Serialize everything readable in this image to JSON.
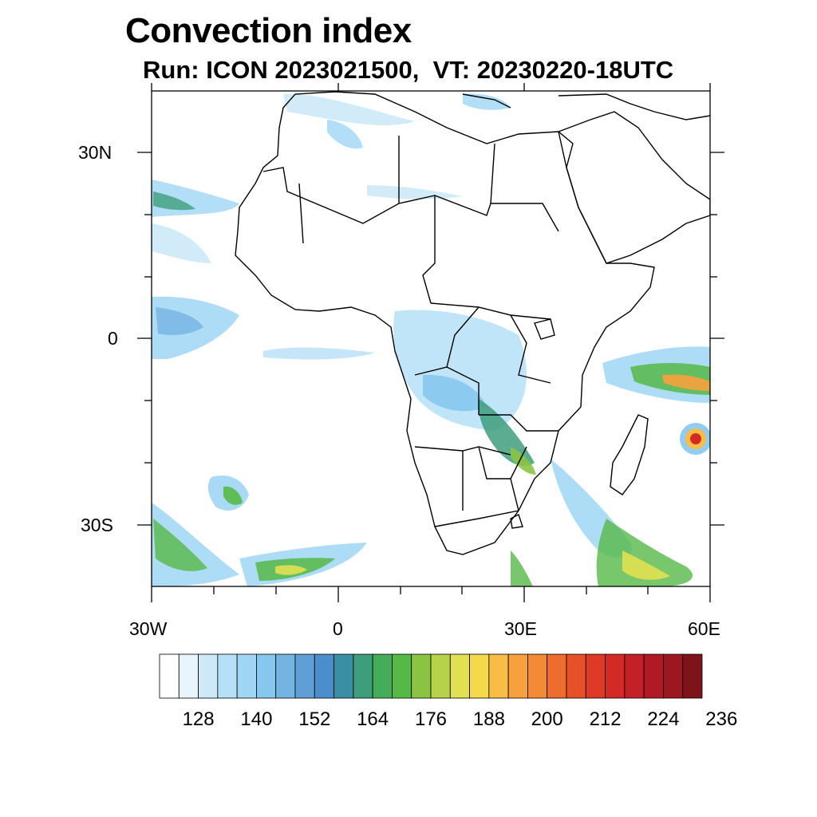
{
  "title": "Convection index",
  "subtitle": {
    "run_label": "Run:",
    "run_value": "ICON 2023021500,",
    "vt_label": "VT:",
    "vt_value": "20230220-18UTC"
  },
  "axes": {
    "lat_labels": [
      "30N",
      "0",
      "30S"
    ],
    "lon_labels": [
      "30W",
      "0",
      "30E",
      "60E"
    ],
    "lon_range": [
      -30,
      60
    ],
    "lat_range": [
      -40,
      40
    ]
  },
  "colorbar": {
    "labels": [
      "128",
      "140",
      "152",
      "164",
      "176",
      "188",
      "200",
      "212",
      "224",
      "236"
    ],
    "colors": [
      "#ffffff",
      "#e8f5fc",
      "#cde9f8",
      "#b6e0f7",
      "#9fd6f5",
      "#86c7ee",
      "#74b4e3",
      "#5f9fd6",
      "#4a8fcc",
      "#3b8fa3",
      "#3e9e7c",
      "#45ad5a",
      "#56b947",
      "#8bc342",
      "#b6d24a",
      "#e0e052",
      "#f5d94a",
      "#f7bd47",
      "#f7a03e",
      "#f38a36",
      "#ee6c2d",
      "#e65128",
      "#df3a26",
      "#d42a26",
      "#c51f27",
      "#b01a24",
      "#9c1720",
      "#7f131a"
    ]
  },
  "map_data": {
    "feature_colors": {
      "land_boundary": "#000000",
      "ocean": "#ffffff"
    }
  }
}
